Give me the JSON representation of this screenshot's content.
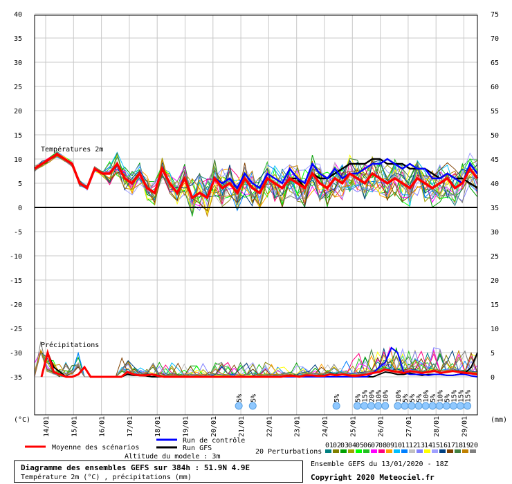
{
  "chart_data": {
    "type": "line",
    "y_left_ticks": [
      40,
      35,
      30,
      25,
      20,
      15,
      10,
      5,
      0,
      -5,
      -10,
      -15,
      -20,
      -25,
      -30,
      -35
    ],
    "y_right_ticks": [
      75,
      70,
      65,
      60,
      55,
      50,
      45,
      40,
      35,
      30,
      25,
      20,
      15,
      10,
      5,
      0
    ],
    "ylabel_left": "(°C)",
    "ylabel_right": "(mm)",
    "x_ticks": [
      "14/01",
      "15/01",
      "16/01",
      "17/01",
      "18/01",
      "19/01",
      "20/01",
      "21/01",
      "22/01",
      "23/01",
      "24/01",
      "25/01",
      "26/01",
      "27/01",
      "28/01",
      "29/01"
    ],
    "temp_label": "Températures 2m",
    "precip_label": "Précipitations",
    "temp_mean": [
      8,
      9,
      10,
      11,
      10,
      9,
      5,
      4,
      8,
      7,
      7,
      9,
      6,
      5,
      7,
      4,
      3,
      8,
      5,
      3,
      6,
      2,
      3,
      2,
      6,
      4,
      5,
      3,
      6,
      4,
      3,
      6,
      5,
      4,
      6,
      5,
      4,
      7,
      5,
      4,
      6,
      5,
      7,
      6,
      5,
      7,
      6,
      5,
      6,
      5,
      4,
      6,
      5,
      4,
      5,
      6,
      4,
      5,
      8,
      6
    ],
    "temp_gfs": [
      8,
      9,
      10,
      11,
      10,
      9,
      5,
      4,
      8,
      7,
      7,
      9,
      6,
      5,
      7,
      4,
      3,
      8,
      5,
      3,
      6,
      2,
      3,
      2,
      6,
      4,
      5,
      3,
      6,
      4,
      3,
      6,
      5,
      4,
      6,
      6,
      4,
      7,
      6,
      6,
      7,
      8,
      9,
      9,
      9,
      10,
      10,
      9,
      9,
      9,
      8,
      8,
      8,
      7,
      6,
      7,
      6,
      6,
      5,
      4
    ],
    "temp_control": [
      8,
      9,
      10,
      11,
      10,
      9,
      5,
      4,
      8,
      7,
      7,
      9,
      6,
      5,
      7,
      4,
      3,
      8,
      5,
      3,
      6,
      2,
      3,
      2,
      6,
      5,
      6,
      4,
      7,
      5,
      4,
      7,
      6,
      5,
      8,
      6,
      5,
      9,
      7,
      6,
      8,
      6,
      7,
      7,
      8,
      9,
      9,
      10,
      9,
      8,
      9,
      8,
      8,
      6,
      6,
      7,
      6,
      5,
      9,
      7
    ],
    "precip_mean": [
      0,
      5,
      1,
      0.5,
      0,
      0,
      0.5,
      2,
      0,
      0,
      0,
      0,
      0,
      0,
      1,
      0.5,
      0.3,
      0.3,
      0.5,
      0.2,
      0,
      0,
      0,
      0,
      0,
      0,
      0,
      0,
      0,
      0,
      0,
      0,
      0,
      0,
      0,
      0,
      0,
      0,
      0,
      0,
      0.2,
      0.2,
      0,
      0.3,
      0.3,
      0.2,
      0.2,
      0.5,
      0.3,
      0.5,
      0.3,
      0.2,
      0.3,
      0.5,
      0.8,
      1.0,
      1.5,
      1.2,
      1.0,
      0.8,
      1.2,
      1.0,
      0.8,
      1.0,
      1.2,
      0.8,
      1.0,
      1.2,
      1.0,
      0.8,
      0.7,
      0.5
    ],
    "precip_gfs": [
      0,
      5,
      2,
      1,
      0,
      0,
      0.5,
      2,
      0,
      0,
      0,
      0,
      0,
      0,
      0.5,
      0.3,
      0.3,
      0.2,
      0,
      0,
      0,
      0,
      0,
      0,
      0,
      0,
      0,
      0,
      0,
      0,
      0,
      0,
      0,
      0,
      0,
      0,
      0,
      0,
      0,
      0,
      0,
      0,
      0,
      0,
      0,
      0,
      0,
      0,
      0,
      0,
      0,
      0,
      0,
      0,
      0,
      0.5,
      1.0,
      0.8,
      0.5,
      0.5,
      0.8,
      0.5,
      0.3,
      0.5,
      0.5,
      0.5,
      0.3,
      0.3,
      0.5,
      0.8,
      2,
      5
    ],
    "precip_control": [
      0,
      5,
      1,
      0.5,
      0,
      0,
      0.5,
      2,
      0,
      0,
      0,
      0,
      0,
      0,
      1,
      0.5,
      0.3,
      0.3,
      0.5,
      0.2,
      0,
      0,
      0,
      0,
      0,
      0,
      0,
      0,
      0,
      0,
      0,
      0,
      0,
      0,
      0,
      0,
      0,
      0,
      0,
      0,
      0,
      0,
      0,
      0,
      0,
      0,
      0,
      0,
      0,
      0,
      0,
      0,
      0,
      0,
      0.8,
      2,
      3,
      6,
      5,
      1,
      0.5,
      0.5,
      0.5,
      0.3,
      0.5,
      0.5,
      0.3,
      0.3,
      0.5,
      0.5,
      0.2,
      0
    ],
    "snow_markers": [
      {
        "idx": 7.1,
        "label": "5%"
      },
      {
        "idx": 7.6,
        "label": "5%"
      },
      {
        "idx": 10.6,
        "label": "5%"
      },
      {
        "idx": 11.35,
        "label": "5%"
      },
      {
        "idx": 11.6,
        "label": "15%"
      },
      {
        "idx": 11.85,
        "label": "20%"
      },
      {
        "idx": 12.1,
        "label": "10%"
      },
      {
        "idx": 12.35,
        "label": "10%"
      },
      {
        "idx": 12.8,
        "label": "10%"
      },
      {
        "idx": 13.05,
        "label": "5%"
      },
      {
        "idx": 13.3,
        "label": "5%"
      },
      {
        "idx": 13.55,
        "label": "5%"
      },
      {
        "idx": 13.8,
        "label": "10%"
      },
      {
        "idx": 14.05,
        "label": "5%"
      },
      {
        "idx": 14.3,
        "label": "10%"
      },
      {
        "idx": 14.55,
        "label": "5%"
      },
      {
        "idx": 14.8,
        "label": "15%"
      },
      {
        "idx": 15.05,
        "label": "15%"
      },
      {
        "idx": 15.3,
        "label": "15%"
      }
    ]
  },
  "legend": {
    "mean_label": "Moyenne des scénarios",
    "control_label": "Run de contrôle",
    "gfs_label": "Run GFS",
    "perturbations_label": "20 Perturbations",
    "perturbation_numbers": [
      "01",
      "02",
      "03",
      "04",
      "05",
      "06",
      "07",
      "08",
      "09",
      "10",
      "11",
      "12",
      "13",
      "14",
      "15",
      "16",
      "17",
      "18",
      "19",
      "20"
    ],
    "perturbation_colors": [
      "#008080",
      "#808000",
      "#00a000",
      "#a0a000",
      "#00ff00",
      "#20c020",
      "#ff00ff",
      "#ff0080",
      "#ffa000",
      "#00c0ff",
      "#0080ff",
      "#c0c0c0",
      "#8080ff",
      "#ffff00",
      "#a0a0ff",
      "#004080",
      "#804000",
      "#408040",
      "#c08000",
      "#808080"
    ],
    "mean_color": "#ff0000",
    "control_color": "#0000ff",
    "gfs_color": "#000000"
  },
  "altitude": "Altitude du modele : 3m",
  "info": {
    "title": "Diagramme des ensembles GEFS sur 384h : 51.9N 4.9E",
    "subtitle": "Température 2m (°C) , précipitations (mm)"
  },
  "run_info": "Ensemble GEFS du 13/01/2020 - 18Z",
  "copyright": "Copyright 2020 Meteociel.fr"
}
